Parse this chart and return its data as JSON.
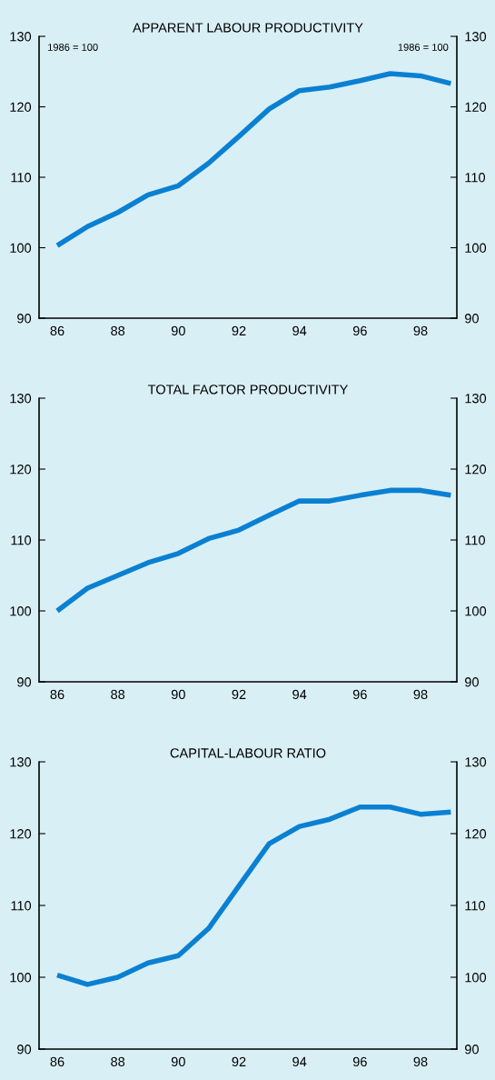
{
  "chart_data": [
    {
      "type": "line",
      "title": "APPARENT LABOUR PRODUCTIVITY",
      "annotations": [
        "1986 = 100",
        "1986 = 100"
      ],
      "x": [
        86,
        87,
        88,
        89,
        90,
        91,
        92,
        93,
        94,
        95,
        96,
        97,
        98,
        99
      ],
      "series": [
        {
          "color": "#0a80d2",
          "values": [
            100.3,
            103,
            105,
            107.5,
            108.8,
            112,
            115.8,
            119.7,
            122.3,
            122.8,
            123.7,
            124.7,
            124.4,
            123.3
          ]
        }
      ],
      "xlim": [
        85.4,
        99.2
      ],
      "xticks": [
        86,
        88,
        90,
        92,
        94,
        96,
        98
      ],
      "ylim": [
        90,
        130
      ],
      "yticks": [
        90,
        100,
        110,
        120,
        130
      ],
      "y2lim": [
        90,
        130
      ],
      "y2ticks": [
        90,
        100,
        110,
        120,
        130
      ],
      "grid": false,
      "legend": false
    },
    {
      "type": "line",
      "title": "TOTAL FACTOR PRODUCTIVITY",
      "x": [
        86,
        87,
        88,
        89,
        90,
        91,
        92,
        93,
        94,
        95,
        96,
        97,
        98,
        99
      ],
      "series": [
        {
          "color": "#0a80d2",
          "values": [
            100,
            103.2,
            105,
            106.8,
            108.1,
            110.2,
            111.4,
            113.5,
            115.5,
            115.5,
            116.3,
            117,
            117,
            116.3
          ]
        }
      ],
      "xlim": [
        85.4,
        99.2
      ],
      "xticks": [
        86,
        88,
        90,
        92,
        94,
        96,
        98
      ],
      "ylim": [
        90,
        130
      ],
      "yticks": [
        90,
        100,
        110,
        120,
        130
      ],
      "y2lim": [
        90,
        130
      ],
      "y2ticks": [
        90,
        100,
        110,
        120,
        130
      ],
      "grid": false,
      "legend": false
    },
    {
      "type": "line",
      "title": "CAPITAL-LABOUR RATIO",
      "x": [
        86,
        87,
        88,
        89,
        90,
        91,
        92,
        93,
        94,
        95,
        96,
        97,
        98,
        99
      ],
      "series": [
        {
          "color": "#0a80d2",
          "values": [
            100.3,
            99,
            100,
            102,
            103,
            106.8,
            112.7,
            118.6,
            121,
            122,
            123.7,
            123.7,
            122.7,
            123
          ]
        }
      ],
      "xlim": [
        85.4,
        99.2
      ],
      "xticks": [
        86,
        88,
        90,
        92,
        94,
        96,
        98
      ],
      "ylim": [
        90,
        130
      ],
      "yticks": [
        90,
        100,
        110,
        120,
        130
      ],
      "y2lim": [
        90,
        130
      ],
      "y2ticks": [
        90,
        100,
        110,
        120,
        130
      ],
      "grid": false,
      "legend": false
    }
  ]
}
